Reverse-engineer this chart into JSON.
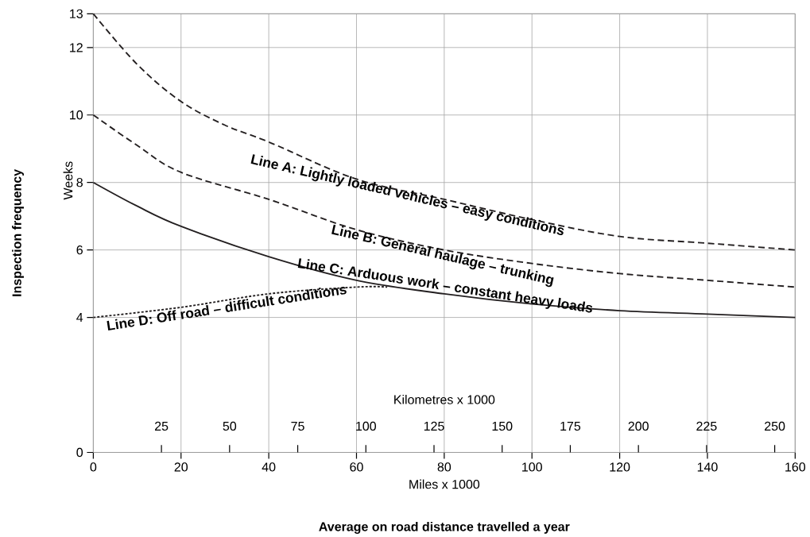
{
  "chart_data": {
    "type": "line",
    "xlabel": "Miles x 1000",
    "ylabel": "Weeks",
    "x2label": "Kilometres x 1000",
    "x2lim": [
      0,
      257.5
    ],
    "x2ticks": [
      25,
      50,
      75,
      100,
      125,
      150,
      175,
      200,
      225,
      250
    ],
    "xlim": [
      0,
      160
    ],
    "xticks": [
      0,
      20,
      40,
      60,
      80,
      100,
      120,
      140,
      160
    ],
    "ylim": [
      0,
      13
    ],
    "yticks": [
      0,
      4,
      6,
      8,
      10,
      12,
      13
    ],
    "grid": true,
    "annotations": [
      "Inspection frequency",
      "Average on road distance travelled a year"
    ],
    "series": [
      {
        "name": "Line A: Lightly loaded vehicles – easy conditions",
        "color": "#231f20",
        "line_style": "dashed",
        "x": [
          0,
          10,
          20,
          30,
          40,
          60,
          80,
          100,
          120,
          140,
          160
        ],
        "values": [
          13,
          11.5,
          10.4,
          9.7,
          9.2,
          8.1,
          7.5,
          6.9,
          6.4,
          6.2,
          6.0
        ]
      },
      {
        "name": "Line B: General haulage – trunking",
        "color": "#231f20",
        "line_style": "dashed",
        "x": [
          0,
          10,
          20,
          40,
          60,
          80,
          100,
          120,
          140,
          160
        ],
        "values": [
          10,
          9.1,
          8.3,
          7.5,
          6.6,
          6.0,
          5.6,
          5.3,
          5.1,
          4.9
        ]
      },
      {
        "name": "Line C: Arduous work – constant heavy loads",
        "color": "#231f20",
        "line_style": "solid",
        "x": [
          0,
          10,
          20,
          40,
          60,
          80,
          100,
          120,
          140,
          160
        ],
        "values": [
          8,
          7.3,
          6.7,
          5.8,
          5.1,
          4.7,
          4.4,
          4.2,
          4.1,
          4.0
        ]
      },
      {
        "name": "Line D: Off road – difficult conditions",
        "color": "#231f20",
        "line_style": "dotted",
        "x": [
          0,
          20,
          40,
          60,
          67
        ],
        "values": [
          4,
          4.3,
          4.7,
          4.9,
          4.9
        ]
      }
    ]
  }
}
